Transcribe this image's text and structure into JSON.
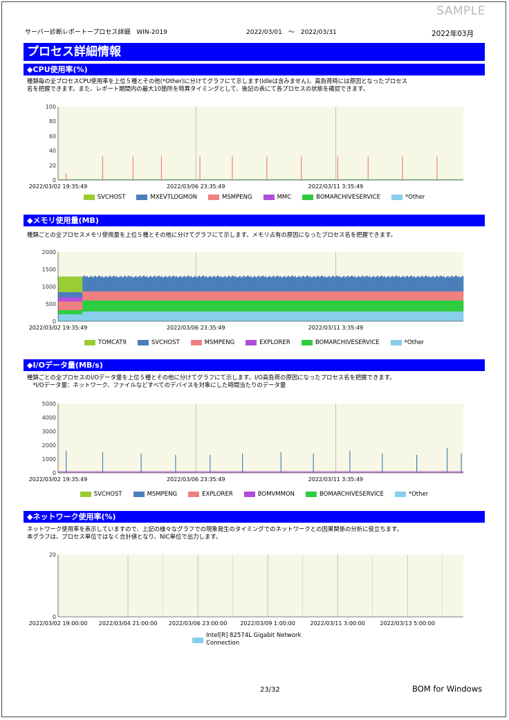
{
  "watermark": "SAMPLE",
  "header": {
    "report_title": "サーバー診断レポートープロセス詳細　WIN-2019",
    "period": "2022/03/01　～　2022/03/31",
    "month": "2022年03月"
  },
  "page_title": "プロセス詳細情報",
  "cpu": {
    "title": "◆CPU使用率(%)",
    "desc1": "種類毎の全プロセスCPU使用率を上位５種とその他(*Other)に分けてグラフにて示します(Idleは含みません)。高負荷時には原因となったプロセス",
    "desc2": "名を把握できます。また、レポート期間内の最大10箇所を特異タイミングとして、後記の表にて各プロセスの状態を確認できます。"
  },
  "memory": {
    "title": "◆メモリ使用量(MB)",
    "desc1": "種類ごとの全プロセスメモリ使用量を上位５種とその他に分けてグラフにて示します。メモリ占有の原因になったプロセス名を把握できます。"
  },
  "io": {
    "title": "◆I/Oデータ量(MB/s)",
    "desc1": "種類ごとの全プロセスのI/Oデータ量を上位５種とその他に分けてグラフにて示します。I/O高負荷の原因になったプロセス名を把握できます。",
    "desc2": "　*I/Oデータ量：ネットワーク、ファイルなどすべてのデバイスを対象にした時間当たりのデータ量"
  },
  "network": {
    "title": "◆ネットワーク使用率(%)",
    "desc1": "ネットワーク使用率を表示していますので、上記の様々なグラフでの現象発生のタイミングでのネットワークとの因果関係の分析に役立ちます。",
    "desc2": "本グラフは、プロセス単位ではなく合計値となり、NIC単位で出力します。"
  },
  "chart_data": [
    {
      "type": "area",
      "id": "cpu",
      "ylim": [
        0,
        100
      ],
      "yticks": [
        0,
        20,
        40,
        60,
        80,
        100
      ],
      "xticks": [
        "2022/03/02 19:35:49",
        "2022/03/06 23:35:49",
        "2022/03/11 3:35:49"
      ],
      "background": "#f7f7e6",
      "grid": "vertical",
      "series": [
        {
          "name": "SVCHOST",
          "color": "#9acd32"
        },
        {
          "name": "MXEVTLOGMON",
          "color": "#4a7ebb"
        },
        {
          "name": "MSMPENG",
          "color": "#f08080"
        },
        {
          "name": "MMC",
          "color": "#b04fd8"
        },
        {
          "name": "BOMARCHIVESERVICE",
          "color": "#2ecc40"
        },
        {
          "name": "*Other",
          "color": "#87ceeb"
        }
      ],
      "spikes": {
        "series": "MSMPENG",
        "x": [
          0.02,
          0.11,
          0.185,
          0.255,
          0.35,
          0.43,
          0.515,
          0.6,
          0.69,
          0.765,
          0.85,
          0.935
        ],
        "y": [
          9,
          32,
          32,
          32,
          32,
          32,
          32,
          32,
          32,
          32,
          32,
          32
        ]
      }
    },
    {
      "type": "area",
      "id": "memory",
      "ylim": [
        0,
        2000
      ],
      "yticks": [
        0,
        500,
        1000,
        1500,
        2000
      ],
      "xticks": [
        "2022/03/02 19:35:49",
        "2022/03/06 23:35:49",
        "2022/03/11 3:35:49"
      ],
      "background": "#f7f7e6",
      "grid": "vertical",
      "series": [
        {
          "name": "TOMCAT9",
          "color": "#9acd32"
        },
        {
          "name": "SVCHOST",
          "color": "#4a7ebb"
        },
        {
          "name": "MSMPENG",
          "color": "#f08080"
        },
        {
          "name": "EXPLORER",
          "color": "#b04fd8"
        },
        {
          "name": "BOMARCHIVESERVICE",
          "color": "#2ecc40"
        },
        {
          "name": "*Other",
          "color": "#87ceeb"
        }
      ],
      "stack_approx": {
        "*Other": 280,
        "BOMARCHIVESERVICE": 320,
        "MSMPENG": 260,
        "EXPLORER": 0,
        "SVCHOST": 400,
        "TOMCAT9": 0
      }
    },
    {
      "type": "area",
      "id": "io",
      "ylim": [
        0,
        5000
      ],
      "yticks": [
        0,
        1000,
        2000,
        3000,
        4000,
        5000
      ],
      "xticks": [
        "2022/03/02 19:35:49",
        "2022/03/06 23:35:49",
        "2022/03/11 3:35:49"
      ],
      "background": "#f7f7e6",
      "grid": "vertical",
      "series": [
        {
          "name": "SVCHOST",
          "color": "#9acd32"
        },
        {
          "name": "MSMPENG",
          "color": "#4a7ebb"
        },
        {
          "name": "EXPLORER",
          "color": "#f08080"
        },
        {
          "name": "BOMVMMON",
          "color": "#b04fd8"
        },
        {
          "name": "BOMARCHIVESERVICE",
          "color": "#2ecc40"
        },
        {
          "name": "*Other",
          "color": "#87ceeb"
        }
      ],
      "spikes": {
        "series": "MSMPENG",
        "x": [
          0.02,
          0.11,
          0.205,
          0.29,
          0.375,
          0.455,
          0.55,
          0.63,
          0.72,
          0.8,
          0.885,
          0.96,
          0.995
        ],
        "y": [
          1600,
          1500,
          1400,
          1300,
          1300,
          1400,
          1500,
          1400,
          1600,
          1400,
          1300,
          1800,
          1400
        ]
      }
    },
    {
      "type": "line",
      "id": "network",
      "ylim": [
        0,
        20
      ],
      "yticks": [
        0,
        20
      ],
      "xticks": [
        "2022/03/02 19:00:00",
        "2022/03/04 21:00:00",
        "2022/03/06 23:00:00",
        "2022/03/09 1:00:00",
        "2022/03/11 3:00:00",
        "2022/03/13 5:00:00"
      ],
      "background": "#f7f7e6",
      "grid": "vertical",
      "series": [
        {
          "name": "Intel[R] 82574L Gigabit Network Connection",
          "color": "#87ceeb",
          "values": [
            0,
            0,
            0,
            0,
            0,
            0
          ]
        }
      ]
    }
  ],
  "legend_net": {
    "line1": "Intel[R] 82574L Gigabit Network",
    "line2": "Connection"
  },
  "footer": {
    "page": "23/32",
    "brand": "BOM for Windows"
  }
}
